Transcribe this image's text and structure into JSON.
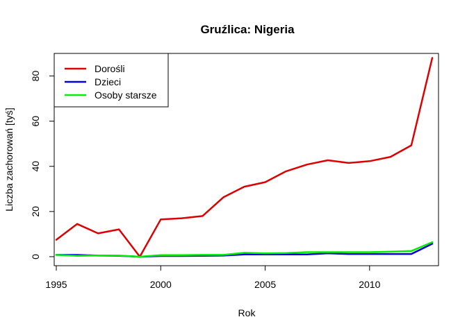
{
  "chart_data": {
    "type": "line",
    "title": "Gruźlica: Nigeria",
    "xlabel": "Rok",
    "ylabel": "Liczba zachorowań [tyś]",
    "xlim": [
      1994.9,
      2013.3
    ],
    "ylim": [
      -4,
      90
    ],
    "x_ticks": [
      1995,
      2000,
      2005,
      2010
    ],
    "y_ticks": [
      0,
      20,
      40,
      60,
      80
    ],
    "grid": false,
    "legend_position": "top-left",
    "x": [
      1995,
      1996,
      1997,
      1998,
      1999,
      2000,
      2001,
      2002,
      2003,
      2004,
      2005,
      2006,
      2007,
      2008,
      2009,
      2010,
      2011,
      2012,
      2013
    ],
    "series": [
      {
        "name": "Dorośli",
        "color": "#dd0000",
        "values": [
          7.5,
          14.5,
          10.3,
          12.1,
          0.0,
          16.5,
          17.0,
          18.0,
          26.3,
          31.0,
          33.0,
          37.8,
          40.8,
          42.7,
          41.5,
          42.3,
          44.2,
          49.3,
          88.0
        ]
      },
      {
        "name": "Dzieci",
        "color": "#0000dd",
        "values": [
          0.8,
          0.8,
          0.5,
          0.4,
          0.0,
          0.3,
          0.3,
          0.4,
          0.5,
          1.0,
          1.0,
          1.0,
          1.0,
          1.5,
          1.2,
          1.2,
          1.2,
          1.2,
          5.7
        ]
      },
      {
        "name": "Osoby starsze",
        "color": "#00ee00",
        "values": [
          0.8,
          0.4,
          0.5,
          0.5,
          0.0,
          0.7,
          0.7,
          0.8,
          0.8,
          1.7,
          1.5,
          1.6,
          2.0,
          2.0,
          2.0,
          2.0,
          2.2,
          2.5,
          6.4
        ]
      }
    ]
  }
}
